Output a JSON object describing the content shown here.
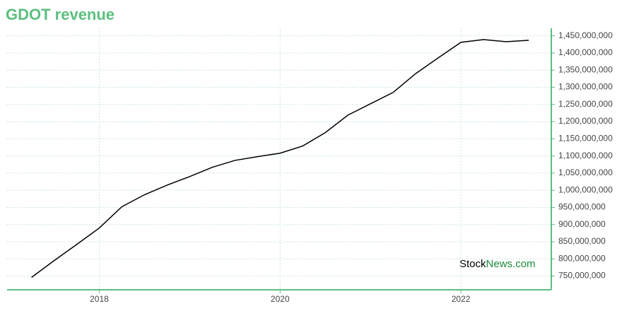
{
  "chart_data": {
    "type": "line",
    "title": "GDOT revenue",
    "x": [
      2017.25,
      2017.5,
      2017.75,
      2018,
      2018.25,
      2018.5,
      2018.75,
      2019,
      2019.25,
      2019.5,
      2019.75,
      2020,
      2020.25,
      2020.5,
      2020.75,
      2021,
      2021.25,
      2021.5,
      2021.75,
      2022,
      2022.25,
      2022.5,
      2022.75
    ],
    "series": [
      {
        "name": "GDOT revenue",
        "color": "#000000",
        "values": [
          746000000,
          795000000,
          842000000,
          890000000,
          952000000,
          987000000,
          1015000000,
          1040000000,
          1067000000,
          1087000000,
          1098000000,
          1108000000,
          1129000000,
          1168000000,
          1219000000,
          1252000000,
          1285000000,
          1340000000,
          1386000000,
          1431000000,
          1439000000,
          1433000000,
          1437000000
        ]
      }
    ],
    "xlim": [
      2016.98,
      2023
    ],
    "xticks": [
      2018,
      2020,
      2022
    ],
    "ylim": [
      710000000,
      1472000000
    ],
    "yticks": [
      {
        "value": 750000000,
        "label": "750,000,000"
      },
      {
        "value": 800000000,
        "label": "800,000,000"
      },
      {
        "value": 850000000,
        "label": "850,000,000"
      },
      {
        "value": 900000000,
        "label": "900,000,000"
      },
      {
        "value": 950000000,
        "label": "950,000,000"
      },
      {
        "value": 1000000000,
        "label": "1,000,000,000"
      },
      {
        "value": 1050000000,
        "label": "1,050,000,000"
      },
      {
        "value": 1100000000,
        "label": "1,100,000,000"
      },
      {
        "value": 1150000000,
        "label": "1,150,000,000"
      },
      {
        "value": 1200000000,
        "label": "1,200,000,000"
      },
      {
        "value": 1250000000,
        "label": "1,250,000,000"
      },
      {
        "value": 1300000000,
        "label": "1,300,000,000"
      },
      {
        "value": 1350000000,
        "label": "1,350,000,000"
      },
      {
        "value": 1400000000,
        "label": "1,400,000,000"
      },
      {
        "value": 1450000000,
        "label": "1,450,000,000"
      }
    ],
    "grid": true,
    "axis_color": "#5cbf7f",
    "watermark": [
      "Stock",
      "News.com"
    ]
  }
}
